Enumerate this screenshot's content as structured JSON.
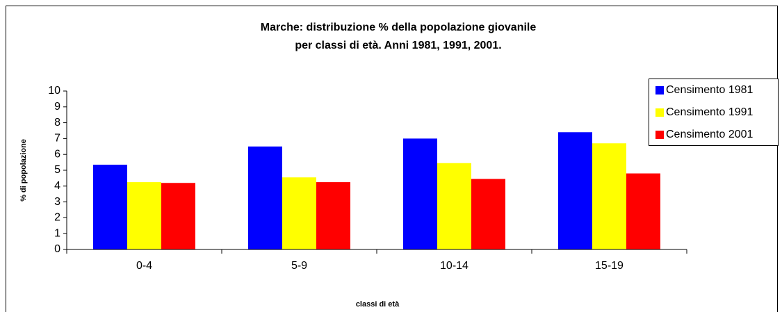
{
  "chart_data": {
    "type": "bar",
    "title": [
      "Marche: distribuzione % della popolazione giovanile",
      "per classi di età. Anni 1981, 1991, 2001."
    ],
    "xlabel": "classi di età",
    "ylabel": "% di popolazione",
    "categories": [
      "0-4",
      "5-9",
      "10-14",
      "15-19"
    ],
    "series": [
      {
        "name": "Censimento 1981",
        "color": "#0000ff",
        "values": [
          5.35,
          6.5,
          7.0,
          7.4
        ]
      },
      {
        "name": "Censimento 1991",
        "color": "#ffff00",
        "values": [
          4.25,
          4.55,
          5.45,
          6.7
        ]
      },
      {
        "name": "Censimento 2001",
        "color": "#ff0000",
        "values": [
          4.2,
          4.25,
          4.45,
          4.8
        ]
      }
    ],
    "ylim": [
      0,
      10
    ],
    "yticks": [
      0,
      1,
      2,
      3,
      4,
      5,
      6,
      7,
      8,
      9,
      10
    ],
    "grid": false,
    "legend": "right"
  }
}
